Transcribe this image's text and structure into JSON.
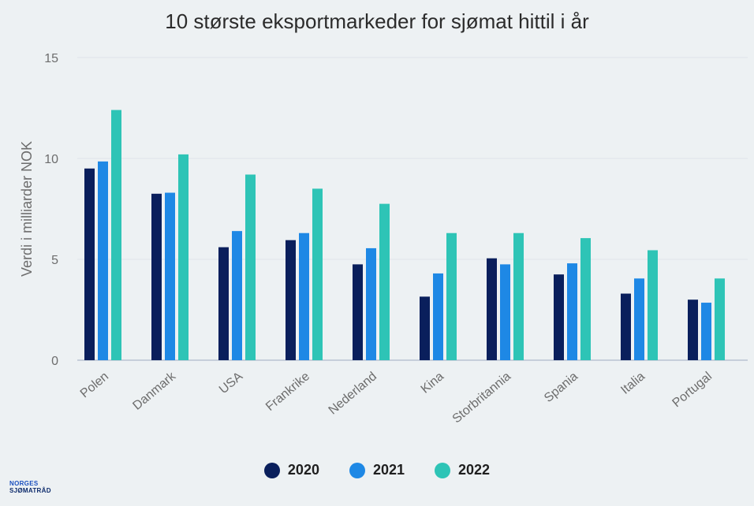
{
  "chart_data": {
    "type": "bar",
    "title": "10 største eksportmarkeder for sjømat hittil i år",
    "xlabel": "",
    "ylabel": "Verdi i milliarder NOK",
    "ylim": [
      0,
      15
    ],
    "yticks": [
      0,
      5,
      10,
      15
    ],
    "grid": true,
    "legend_position": "bottom-center",
    "categories": [
      "Polen",
      "Danmark",
      "USA",
      "Frankrike",
      "Nederland",
      "Kina",
      "Storbritannia",
      "Spania",
      "Italia",
      "Portugal"
    ],
    "series": [
      {
        "name": "2020",
        "color": "#0a1f5c",
        "values": [
          9.5,
          8.25,
          5.6,
          5.95,
          4.75,
          3.15,
          5.05,
          4.25,
          3.3,
          3.0
        ]
      },
      {
        "name": "2021",
        "color": "#1e88e5",
        "values": [
          9.85,
          8.3,
          6.4,
          6.3,
          5.55,
          4.3,
          4.75,
          4.8,
          4.05,
          2.85
        ]
      },
      {
        "name": "2022",
        "color": "#2ec4b6",
        "values": [
          12.4,
          10.2,
          9.2,
          8.5,
          7.75,
          6.3,
          6.3,
          6.05,
          5.45,
          4.05
        ]
      }
    ]
  },
  "logo": {
    "line1": "NORGES",
    "line2": "SJØMATRÅD"
  }
}
